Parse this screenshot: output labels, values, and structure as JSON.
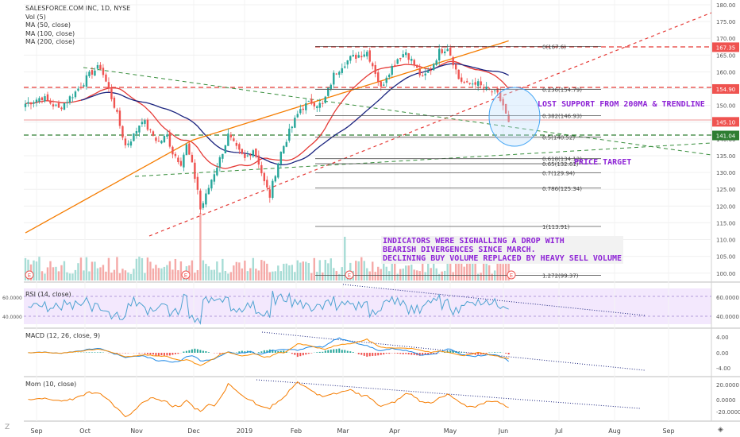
{
  "header": {
    "symbol": "SALESFORCE.COM INC, 1D, NYSE",
    "indicators": [
      "Vol (5)",
      "MA (50, close)",
      "MA (100, close)",
      "MA (200, close)"
    ]
  },
  "panes": {
    "rsi_label": "RSI (14, close)",
    "macd_label": "MACD (12, 26, close, 9)",
    "mom_label": "Mom (10, close)"
  },
  "annotations": {
    "support": "LOST SUPPORT FROM 200MA & TRENDLINE",
    "target": "PRICE TARGET",
    "indicators_line1": "INDICATORS WERE SIGNALLING A DROP WITH",
    "indicators_line2": "BEARISH DIVERGENCES SINCE MARCH.",
    "indicators_line3": "DECLINING BUY VOLUME REPLACED BY HEAVY SELL VOLUME"
  },
  "colors": {
    "up": "#26a69a",
    "down": "#ef5350",
    "ma50": "#e53935",
    "ma100": "#1a237e",
    "ma200": "#f57c00",
    "annotation": "#8e24d6"
  },
  "chart_data": {
    "type": "candlestick",
    "price_axis": {
      "ticks": [
        100,
        105,
        110,
        115,
        120,
        125,
        130,
        135,
        140,
        145,
        150,
        155,
        160,
        165,
        170,
        175,
        180
      ]
    },
    "time_axis": [
      "Sep",
      "Oct",
      "Nov",
      "Dec",
      "2019",
      "Feb",
      "Mar",
      "Apr",
      "May",
      "Jun",
      "Jul",
      "Aug",
      "Sep"
    ],
    "price_labels": [
      {
        "value": 167.35,
        "text": "167.35",
        "color": "#ef5350"
      },
      {
        "value": 154.9,
        "text": "154.90",
        "color": "#ef5350"
      },
      {
        "value": 145.1,
        "text": "145.10",
        "color": "#ef5350"
      },
      {
        "value": 141.04,
        "text": "141.04",
        "color": "#2e7d32"
      }
    ],
    "fib_levels": [
      {
        "value": 167.6,
        "label": "0(167.6)"
      },
      {
        "value": 154.79,
        "label": "0.236(154.79)"
      },
      {
        "value": 146.93,
        "label": "0.382(146.93)"
      },
      {
        "value": 140.52,
        "label": "0.5(140.52)"
      },
      {
        "value": 134.12,
        "label": "0.618(134.12)"
      },
      {
        "value": 132.61,
        "label": "0.65(132.61)"
      },
      {
        "value": 129.94,
        "label": "0.7(129.94)"
      },
      {
        "value": 125.34,
        "label": "0.786(125.34)"
      },
      {
        "value": 113.91,
        "label": "1(113.91)"
      },
      {
        "value": 99.37,
        "label": "1.272(99.37)"
      }
    ],
    "rsi_axis": [
      "60.0000",
      "40.0000"
    ],
    "macd_axis": [
      "4.00",
      "0.00",
      "-4.00"
    ],
    "mom_axis": [
      "20.0000",
      "0.0000",
      "-20.0000"
    ],
    "price_path": [
      [
        0,
        150.5
      ],
      [
        6,
        152.5
      ],
      [
        12,
        149
      ],
      [
        18,
        154
      ],
      [
        24,
        160
      ],
      [
        27,
        161.5
      ],
      [
        29,
        157
      ],
      [
        32,
        150
      ],
      [
        34,
        144
      ],
      [
        36,
        138
      ],
      [
        39,
        141
      ],
      [
        42,
        146
      ],
      [
        45,
        142
      ],
      [
        48,
        139
      ],
      [
        51,
        141
      ],
      [
        53,
        136
      ],
      [
        56,
        133
      ],
      [
        58,
        138
      ],
      [
        60,
        132
      ],
      [
        62,
        125
      ],
      [
        63,
        119
      ],
      [
        65,
        123
      ],
      [
        67,
        128
      ],
      [
        70,
        134
      ],
      [
        73,
        141
      ],
      [
        76,
        137
      ],
      [
        79,
        134
      ],
      [
        82,
        137
      ],
      [
        84,
        133
      ],
      [
        86,
        127
      ],
      [
        88,
        123
      ],
      [
        90,
        130
      ],
      [
        92,
        136
      ],
      [
        95,
        142
      ],
      [
        99,
        149
      ],
      [
        103,
        151
      ],
      [
        107,
        150
      ],
      [
        111,
        159
      ],
      [
        114,
        162
      ],
      [
        117,
        164
      ],
      [
        120,
        165
      ],
      [
        123,
        166
      ],
      [
        126,
        160
      ],
      [
        128,
        155
      ],
      [
        130,
        159
      ],
      [
        134,
        164
      ],
      [
        137,
        166
      ],
      [
        140,
        162
      ],
      [
        143,
        158
      ],
      [
        146,
        161
      ],
      [
        149,
        166
      ],
      [
        152,
        167.5
      ],
      [
        154,
        163
      ],
      [
        156,
        158
      ],
      [
        159,
        156
      ],
      [
        162,
        157
      ],
      [
        165,
        155
      ],
      [
        168,
        154
      ],
      [
        170,
        153
      ],
      [
        172,
        150
      ],
      [
        174,
        145.1
      ]
    ]
  }
}
